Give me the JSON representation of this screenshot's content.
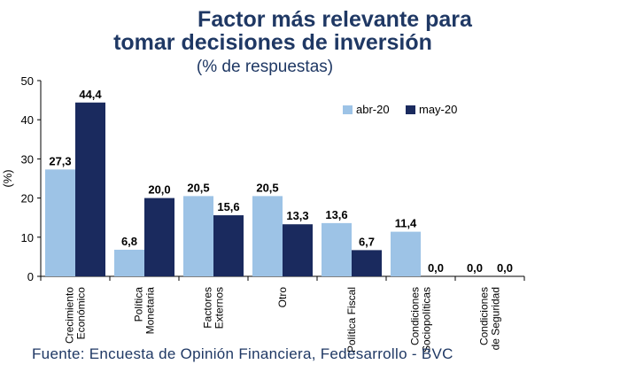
{
  "chart_data": {
    "type": "bar",
    "title_line1": "Factor más relevante para",
    "title_line2": "tomar decisiones de inversión",
    "subtitle": "(% de respuestas)",
    "ylabel": "(%)",
    "ylim": [
      0,
      50
    ],
    "yticks": [
      0,
      10,
      20,
      30,
      40,
      50
    ],
    "categories": [
      [
        "Crecimiento",
        "Económico"
      ],
      [
        "Política",
        "Monetaria"
      ],
      [
        "Factores",
        "Externos"
      ],
      [
        "Otro"
      ],
      [
        "Política Fiscal"
      ],
      [
        "Condiciones",
        "Sociopolíticas"
      ],
      [
        "Condiciones",
        "de Seguridad"
      ]
    ],
    "series": [
      {
        "name": "abr-20",
        "color": "#9DC3E6",
        "values": [
          27.3,
          6.8,
          20.5,
          20.5,
          13.6,
          11.4,
          0.0
        ],
        "labels": [
          "27,3",
          "6,8",
          "20,5",
          "20,5",
          "13,6",
          "11,4",
          "0,0"
        ]
      },
      {
        "name": "may-20",
        "color": "#1A2A5E",
        "values": [
          44.4,
          20.0,
          15.6,
          13.3,
          6.7,
          0.0,
          0.0
        ],
        "labels": [
          "44,4",
          "20,0",
          "15,6",
          "13,3",
          "6,7",
          "0,0",
          "0,0"
        ]
      }
    ],
    "legend_position": "top-right"
  },
  "source": "Fuente: Encuesta de Opinión Financiera, Fedesarrollo - BVC"
}
